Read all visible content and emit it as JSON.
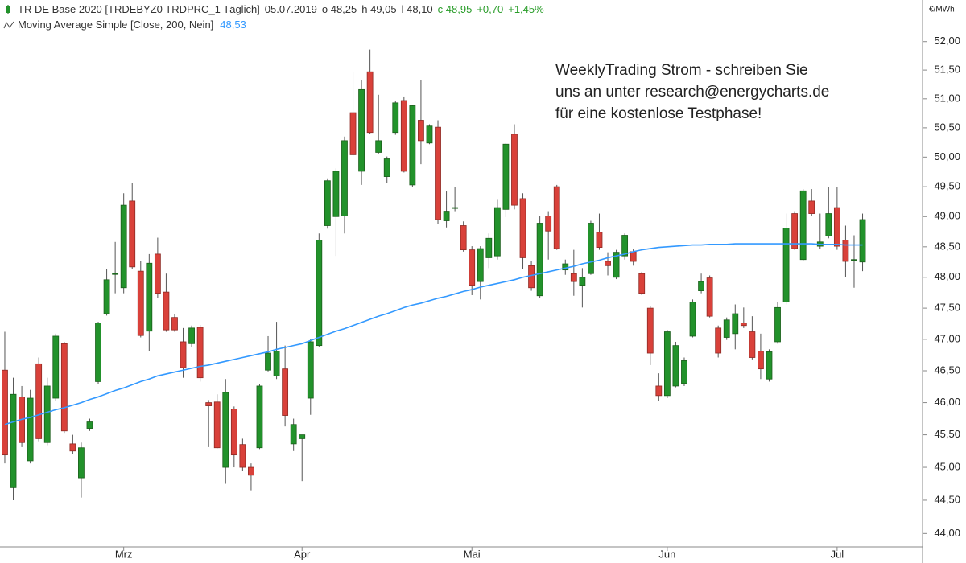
{
  "chart_data": {
    "type": "candlestick",
    "header": {
      "date": "05.07.2019",
      "open_label": "o 48,25",
      "high_label": "h 49,05",
      "low_label": "l 48,10",
      "close_label": "c 48,95",
      "change": "+0,70",
      "change_pct": "+1,45%"
    },
    "annotation": [
      "WeeklyTrading Strom - schreiben Sie",
      "uns an unter research@energycharts.de",
      "für eine kostenlose Testphase!"
    ],
    "unit_label": "€/MWh",
    "categories": [
      null,
      null,
      null,
      null,
      null,
      null,
      null,
      null,
      null,
      null,
      null,
      null,
      null,
      null,
      "Mrz",
      null,
      null,
      null,
      null,
      null,
      null,
      null,
      null,
      null,
      null,
      null,
      null,
      null,
      null,
      null,
      null,
      null,
      null,
      null,
      null,
      "Apr",
      null,
      null,
      null,
      null,
      null,
      null,
      null,
      null,
      null,
      null,
      null,
      null,
      null,
      null,
      null,
      null,
      null,
      null,
      null,
      "Mai",
      null,
      null,
      null,
      null,
      null,
      null,
      null,
      null,
      null,
      null,
      null,
      null,
      null,
      null,
      null,
      null,
      null,
      null,
      null,
      null,
      null,
      null,
      "Jun",
      null,
      null,
      null,
      null,
      null,
      null,
      null,
      null,
      null,
      null,
      null,
      null,
      null,
      null,
      null,
      null,
      null,
      null,
      null,
      "Jul",
      null,
      null,
      null
    ],
    "series": [
      {
        "name": "TR DE Base 2020 [TRDEBYZ0 TRDPRC_1 Täglich]",
        "up_color": "#22922b",
        "down_color": "#d9413a",
        "open": [
          46.51,
          44.69,
          46.09,
          45.1,
          46.61,
          45.38,
          46.07,
          46.93,
          45.36,
          44.84,
          45.6,
          46.33,
          47.41,
          48.05,
          47.83,
          49.26,
          48.1,
          47.13,
          48.38,
          47.76,
          47.35,
          46.96,
          46.93,
          47.19,
          46.0,
          46.01,
          45.0,
          45.9,
          45.35,
          45.0,
          45.3,
          46.51,
          46.42,
          46.53,
          45.36,
          45.44,
          46.07,
          46.9,
          48.85,
          49.0,
          49.01,
          50.76,
          49.76,
          51.47,
          50.08,
          49.67,
          50.42,
          50.97,
          49.53,
          50.63,
          50.24,
          50.51,
          48.93,
          49.14,
          48.85,
          48.45,
          47.93,
          48.32,
          48.35,
          49.12,
          50.39,
          49.3,
          48.19,
          47.7,
          49.01,
          49.5,
          48.12,
          48.06,
          47.87,
          48.06,
          48.74,
          48.26,
          48.0,
          48.35,
          48.42,
          48.06,
          47.5,
          46.26,
          46.11,
          46.26,
          46.3,
          47.05,
          47.78,
          47.99,
          47.18,
          47.03,
          47.09,
          47.26,
          47.12,
          46.81,
          46.37,
          46.96,
          47.6,
          49.05,
          48.29,
          49.26,
          48.51,
          48.68,
          49.15,
          48.61,
          48.28,
          48.25
        ],
        "high": [
          47.12,
          46.39,
          46.26,
          46.2,
          46.71,
          46.39,
          47.09,
          46.96,
          45.5,
          45.38,
          45.75,
          47.28,
          48.13,
          48.58,
          49.39,
          49.56,
          48.26,
          48.38,
          48.65,
          48.06,
          47.41,
          47.18,
          47.22,
          47.23,
          46.04,
          46.13,
          46.37,
          45.94,
          45.44,
          45.06,
          46.29,
          47.05,
          47.28,
          46.9,
          45.75,
          45.5,
          47.01,
          48.72,
          49.64,
          49.81,
          50.35,
          51.47,
          51.33,
          51.86,
          51.07,
          50.01,
          50.97,
          51.04,
          50.9,
          51.33,
          50.56,
          50.63,
          49.42,
          49.49,
          48.92,
          48.51,
          48.51,
          48.72,
          49.28,
          50.24,
          50.56,
          49.39,
          48.26,
          49.01,
          49.09,
          49.53,
          48.29,
          48.45,
          48.15,
          48.93,
          49.05,
          48.41,
          48.45,
          48.72,
          48.47,
          48.09,
          47.54,
          46.46,
          47.15,
          46.96,
          46.71,
          47.64,
          48.06,
          48.03,
          47.22,
          47.35,
          47.56,
          47.51,
          47.37,
          47.09,
          46.84,
          47.6,
          49.05,
          49.09,
          49.46,
          49.46,
          49.05,
          49.5,
          49.5,
          48.85,
          48.69,
          49.05
        ],
        "low": [
          45.06,
          44.5,
          45.31,
          45.06,
          45.4,
          45.34,
          46.03,
          45.53,
          45.21,
          44.54,
          45.56,
          46.29,
          47.38,
          47.74,
          47.74,
          48.13,
          47.03,
          46.81,
          47.67,
          47.12,
          47.12,
          46.39,
          46.88,
          46.33,
          45.31,
          45.29,
          44.75,
          45.0,
          44.94,
          44.65,
          45.28,
          46.49,
          46.37,
          45.63,
          45.25,
          44.79,
          45.81,
          46.88,
          48.8,
          48.35,
          48.72,
          50.01,
          49.53,
          50.39,
          50.05,
          49.56,
          50.38,
          49.74,
          49.5,
          49.88,
          50.22,
          48.88,
          48.82,
          49.09,
          48.42,
          47.71,
          47.64,
          48.15,
          48.29,
          48.99,
          49.12,
          48.13,
          47.78,
          47.67,
          48.29,
          48.45,
          48.04,
          47.7,
          47.51,
          48.04,
          48.45,
          48.03,
          47.97,
          48.29,
          48.19,
          47.71,
          46.59,
          46.03,
          46.07,
          46.24,
          46.26,
          47.03,
          47.74,
          47.35,
          46.71,
          46.99,
          46.84,
          47.18,
          46.68,
          46.37,
          46.33,
          46.93,
          47.56,
          48.45,
          48.26,
          49.01,
          48.47,
          48.64,
          48.45,
          48.0,
          47.83,
          48.1
        ],
        "close": [
          45.19,
          46.13,
          45.38,
          46.07,
          45.44,
          46.26,
          47.05,
          45.56,
          45.25,
          45.3,
          45.7,
          47.26,
          47.96,
          48.06,
          49.19,
          48.17,
          47.06,
          48.23,
          47.74,
          47.15,
          47.15,
          46.55,
          47.18,
          46.39,
          45.95,
          45.3,
          46.16,
          45.19,
          45.0,
          44.88,
          46.26,
          46.78,
          46.81,
          45.8,
          45.66,
          45.5,
          46.96,
          48.61,
          49.6,
          49.76,
          50.28,
          50.04,
          51.16,
          50.42,
          50.28,
          49.97,
          50.93,
          49.76,
          50.88,
          50.28,
          50.53,
          48.95,
          49.09,
          49.15,
          48.45,
          47.87,
          48.47,
          48.64,
          49.15,
          50.22,
          49.19,
          48.32,
          47.83,
          48.89,
          48.76,
          48.47,
          48.22,
          47.93,
          48.0,
          48.89,
          48.49,
          48.19,
          48.41,
          48.69,
          48.26,
          47.74,
          46.78,
          46.11,
          47.12,
          46.9,
          46.66,
          47.6,
          47.93,
          47.37,
          46.78,
          47.31,
          47.41,
          47.22,
          46.71,
          46.53,
          46.8,
          47.51,
          48.81,
          48.47,
          49.43,
          49.05,
          48.58,
          49.05,
          48.51,
          48.26,
          48.29,
          48.95
        ]
      }
    ],
    "overlays": [
      {
        "name": "Moving Average Simple [Close, 200, Nein]",
        "color": "#3399ff",
        "value_label": "48,53",
        "values": [
          45.66,
          45.7,
          45.74,
          45.77,
          45.81,
          45.85,
          45.89,
          45.92,
          45.96,
          46.0,
          46.05,
          46.09,
          46.14,
          46.19,
          46.23,
          46.28,
          46.33,
          46.37,
          46.42,
          46.45,
          46.48,
          46.51,
          46.54,
          46.57,
          46.59,
          46.62,
          46.65,
          46.68,
          46.71,
          46.74,
          46.77,
          46.8,
          46.84,
          46.87,
          46.9,
          46.93,
          46.98,
          47.03,
          47.08,
          47.13,
          47.17,
          47.22,
          47.27,
          47.32,
          47.37,
          47.41,
          47.46,
          47.51,
          47.55,
          47.58,
          47.62,
          47.66,
          47.69,
          47.73,
          47.77,
          47.8,
          47.84,
          47.87,
          47.9,
          47.93,
          47.96,
          48.0,
          48.03,
          48.06,
          48.09,
          48.12,
          48.15,
          48.18,
          48.22,
          48.25,
          48.28,
          48.32,
          48.35,
          48.38,
          48.42,
          48.45,
          48.47,
          48.49,
          48.5,
          48.51,
          48.52,
          48.53,
          48.53,
          48.54,
          48.54,
          48.54,
          48.55,
          48.55,
          48.55,
          48.55,
          48.55,
          48.55,
          48.55,
          48.55,
          48.55,
          48.55,
          48.54,
          48.54,
          48.54,
          48.53,
          48.53,
          48.53
        ]
      }
    ],
    "log_scale": true,
    "grid": false,
    "ylim": [
      43.8,
      52.74
    ],
    "yticks": [
      {
        "value": 44,
        "label": "44,00"
      },
      {
        "value": 44.5,
        "label": "44,50"
      },
      {
        "value": 45,
        "label": "45,00"
      },
      {
        "value": 45.5,
        "label": "45,50"
      },
      {
        "value": 46,
        "label": "46,00"
      },
      {
        "value": 46.5,
        "label": "46,50"
      },
      {
        "value": 47,
        "label": "47,00"
      },
      {
        "value": 47.5,
        "label": "47,50"
      },
      {
        "value": 48,
        "label": "48,00"
      },
      {
        "value": 48.5,
        "label": "48,50"
      },
      {
        "value": 49,
        "label": "49,00"
      },
      {
        "value": 49.5,
        "label": "49,50"
      },
      {
        "value": 50,
        "label": "50,00"
      },
      {
        "value": 50.5,
        "label": "50,50"
      },
      {
        "value": 51,
        "label": "51,00"
      },
      {
        "value": 51.5,
        "label": "51,50"
      },
      {
        "value": 52,
        "label": "52,00"
      }
    ]
  }
}
